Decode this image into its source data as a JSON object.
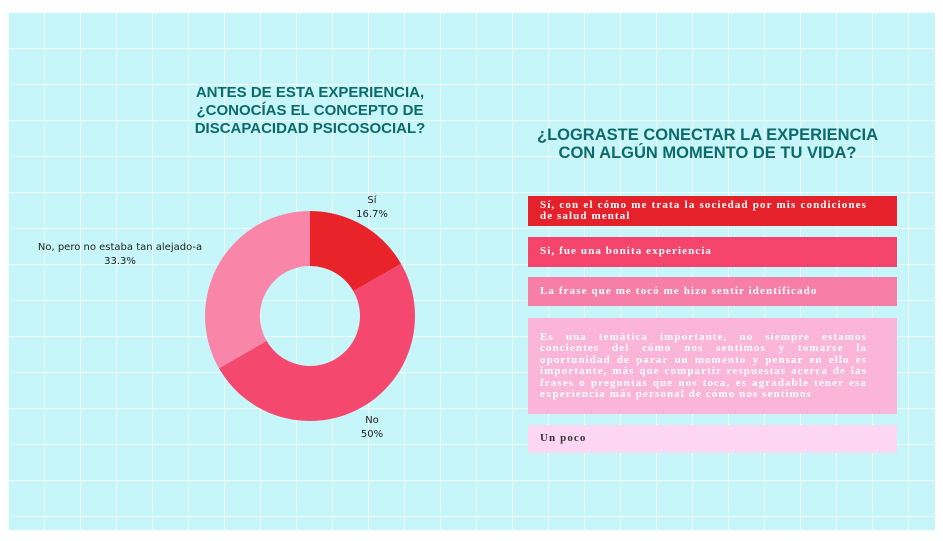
{
  "chart_data": {
    "type": "donut",
    "title": "ANTES DE ESTA EXPERIENCIA, ¿CONOCÍAS EL CONCEPTO DE DISCAPACIDAD PSICOSOCIAL?",
    "categories": [
      "Sí",
      "No",
      "No, pero no estaba tan alejado-a"
    ],
    "values": [
      16.7,
      50,
      33.3
    ],
    "value_labels": [
      "16.7%",
      "50%",
      "33.3%"
    ],
    "colors": [
      "#e8232a",
      "#f4486e",
      "#f986a8"
    ]
  },
  "responses": {
    "title": "¿LOGRASTE CONECTAR LA EXPERIENCIA CON ALGÚN MOMENTO DE TU VIDA?",
    "items": [
      "Sí, con el cómo me trata la sociedad por mis condiciones de salud mental",
      "Si, fue una bonita experiencia",
      "La frase que me tocó me hizo sentír identificado",
      "Es una temática importante, no siempre estamos concientes del cómo nos sentimos y tomarse la oportunidad de parar un momento y pensar en ello es importante, más que compartir respuestas acerca de las frases o preguntas que nos toca, es agradable tener esa experiencia más personal de cómo nos sentimos",
      "Un poco"
    ]
  }
}
